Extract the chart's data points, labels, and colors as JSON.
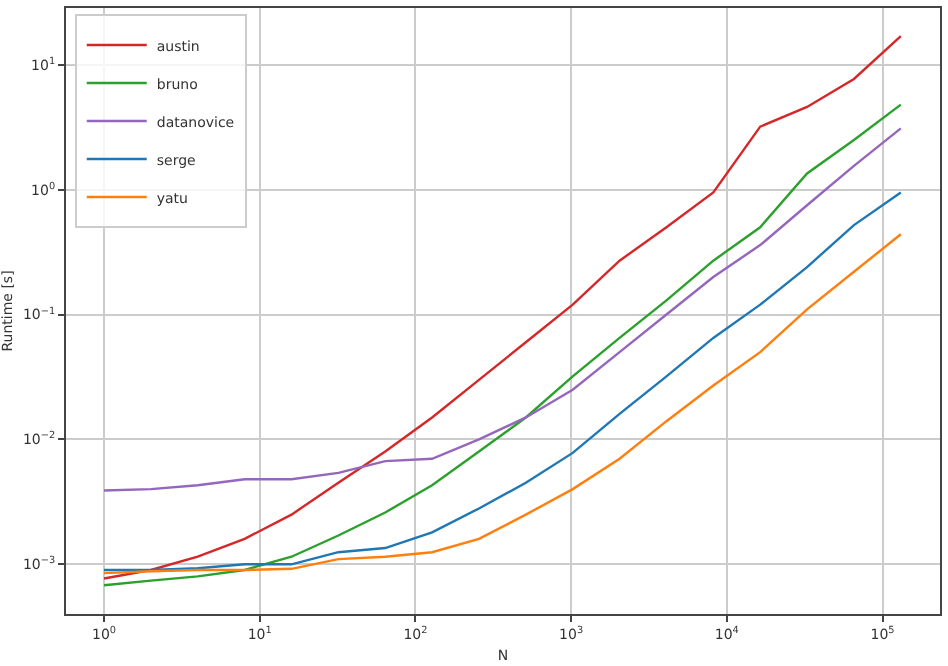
{
  "chart_data": {
    "type": "line",
    "xlabel": "N",
    "ylabel": "Runtime [s]",
    "log": "xy",
    "grid": true,
    "legend": "top left",
    "line_style": "solid",
    "marker": "none",
    "x": [
      1,
      2,
      4,
      8,
      16,
      32,
      64,
      128,
      256,
      512,
      1024,
      2048,
      4096,
      8192,
      16384,
      32768,
      65536,
      131072
    ],
    "xlim": [
      0.57,
      234000
    ],
    "ylim": [
      0.0004,
      28.5
    ],
    "xticks": [
      {
        "value": 1,
        "label": "10$^{0}$"
      },
      {
        "value": 10,
        "label": "10$^{1}$"
      },
      {
        "value": 100,
        "label": "10$^{2}$"
      },
      {
        "value": 1000,
        "label": "10$^{3}$"
      },
      {
        "value": 10000,
        "label": "10$^{4}$"
      },
      {
        "value": 100000,
        "label": "10$^{5}$"
      }
    ],
    "yticks": [
      {
        "value": 0.001,
        "label": "10$^{−3}$"
      },
      {
        "value": 0.01,
        "label": "10$^{−2}$"
      },
      {
        "value": 0.1,
        "label": "10$^{−1}$"
      },
      {
        "value": 1,
        "label": "10$^{0}$"
      },
      {
        "value": 10,
        "label": "10$^{1}$"
      }
    ],
    "series": [
      {
        "name": "austin",
        "color": "#d62728",
        "values": [
          0.00077,
          0.0009,
          0.00115,
          0.0016,
          0.0025,
          0.0045,
          0.008,
          0.015,
          0.03,
          0.06,
          0.12,
          0.27,
          0.5,
          0.95,
          3.2,
          4.6,
          7.7,
          17
        ]
      },
      {
        "name": "bruno",
        "color": "#2ca02c",
        "values": [
          0.00068,
          0.00074,
          0.0008,
          0.0009,
          0.00115,
          0.0017,
          0.0026,
          0.0043,
          0.008,
          0.015,
          0.032,
          0.065,
          0.13,
          0.27,
          0.5,
          1.35,
          2.5,
          4.8
        ]
      },
      {
        "name": "datanovice",
        "color": "#9467bd",
        "values": [
          0.0039,
          0.004,
          0.0043,
          0.0048,
          0.0048,
          0.0054,
          0.0067,
          0.007,
          0.01,
          0.015,
          0.025,
          0.05,
          0.1,
          0.2,
          0.36,
          0.75,
          1.55,
          3.1
        ]
      },
      {
        "name": "serge",
        "color": "#1f77b4",
        "values": [
          0.0009,
          0.0009,
          0.00093,
          0.001,
          0.001,
          0.00125,
          0.00135,
          0.0018,
          0.0028,
          0.0045,
          0.0078,
          0.016,
          0.032,
          0.065,
          0.12,
          0.24,
          0.52,
          0.95
        ]
      },
      {
        "name": "yatu",
        "color": "#ff7f0e",
        "values": [
          0.00085,
          0.00088,
          0.0009,
          0.0009,
          0.00092,
          0.0011,
          0.00115,
          0.00125,
          0.0016,
          0.0025,
          0.004,
          0.007,
          0.014,
          0.027,
          0.05,
          0.11,
          0.22,
          0.44
        ]
      }
    ]
  }
}
